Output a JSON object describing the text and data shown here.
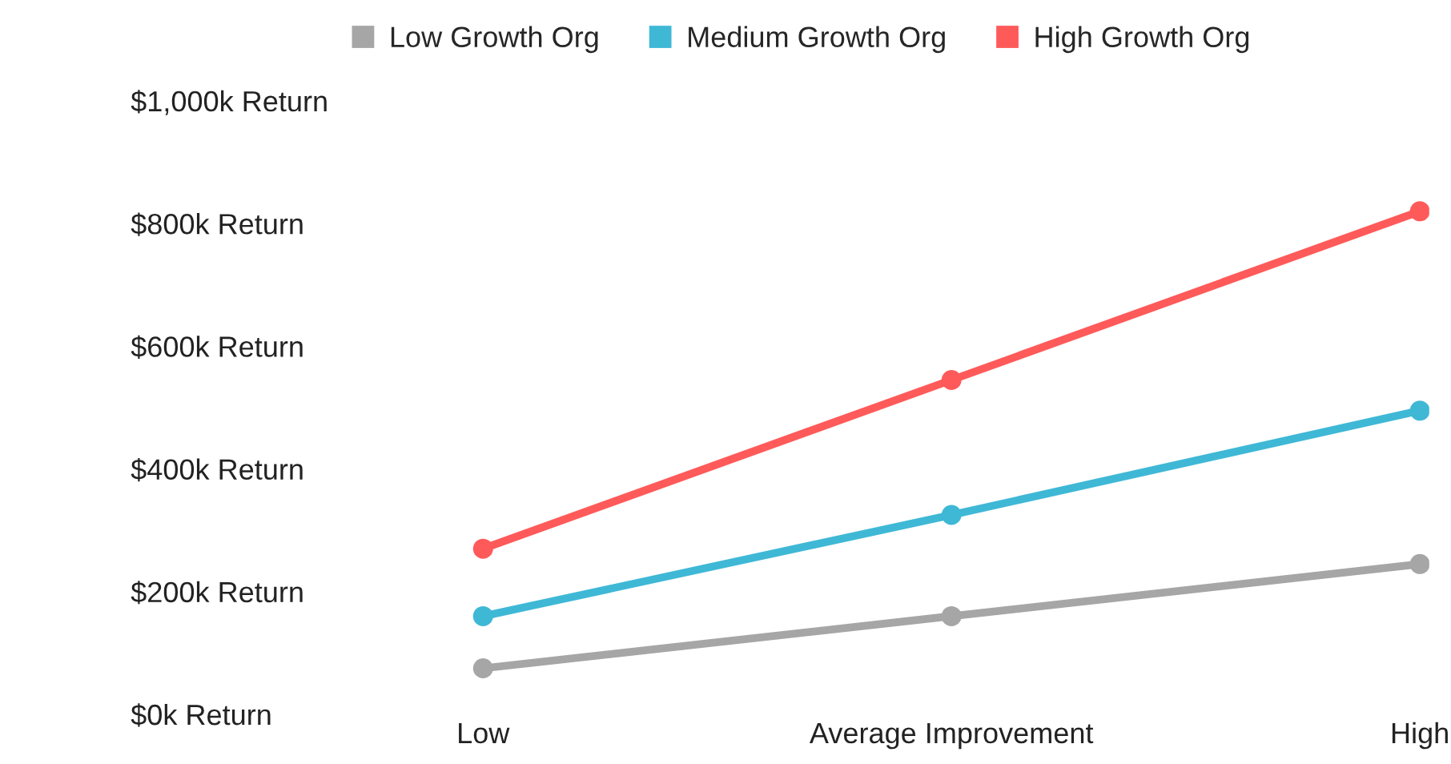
{
  "chart_data": {
    "type": "line",
    "categories": [
      "Low",
      "Average Improvement",
      "High"
    ],
    "series": [
      {
        "name": "Low Growth Org",
        "color": "#a6a6a6",
        "values": [
          75,
          160,
          245
        ]
      },
      {
        "name": "Medium Growth Org",
        "color": "#3fb8d6",
        "values": [
          160,
          325,
          495
        ]
      },
      {
        "name": "High Growth Org",
        "color": "#ff5a5a",
        "values": [
          270,
          545,
          820
        ]
      }
    ],
    "ylim": [
      0,
      1000
    ],
    "yticks": [
      {
        "value": 0,
        "label": "$0k Return"
      },
      {
        "value": 200,
        "label": "$200k Return"
      },
      {
        "value": 400,
        "label": "$400k Return"
      },
      {
        "value": 600,
        "label": "$600k Return"
      },
      {
        "value": 800,
        "label": "$800k Return"
      },
      {
        "value": 1000,
        "label": "$1,000k Return"
      }
    ],
    "grid": false,
    "legend": "top",
    "marker": "circle",
    "line_style": "solid"
  }
}
